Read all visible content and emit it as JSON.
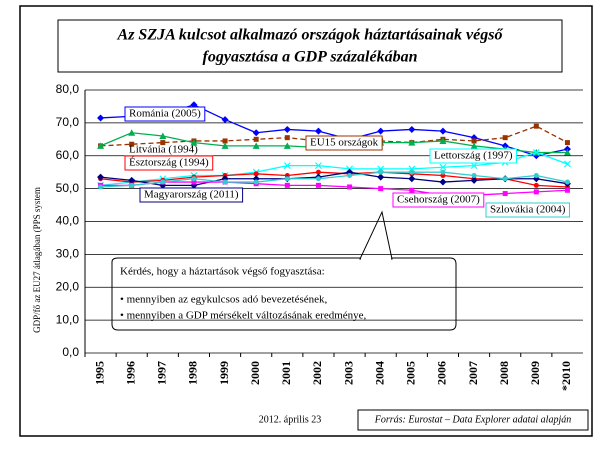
{
  "chart_data": {
    "type": "line",
    "title_lines": [
      "Az SZJA kulcsot alkalmazó országok háztartásainak végső",
      "fogyasztása a GDP százalékában"
    ],
    "ylabel": "GDP/fő az EU27 átlagában (PPS system",
    "categories": [
      "1995",
      "1996",
      "1997",
      "1998",
      "1999",
      "2000",
      "2001",
      "2002",
      "2003",
      "2004",
      "2005",
      "2006",
      "2007",
      "2008",
      "2009",
      "*2010"
    ],
    "ylim": [
      0,
      80
    ],
    "yticks": [
      {
        "value": 0,
        "label": "0,0"
      },
      {
        "value": 10,
        "label": "10,0"
      },
      {
        "value": 20,
        "label": "20,0"
      },
      {
        "value": 30,
        "label": "30,0"
      },
      {
        "value": 40,
        "label": "40,0"
      },
      {
        "value": 50,
        "label": "50,0"
      },
      {
        "value": 60,
        "label": "60,0"
      },
      {
        "value": 70,
        "label": "70,0"
      },
      {
        "value": 80,
        "label": "80,0"
      }
    ],
    "grid": true,
    "series": [
      {
        "name": "Románia (2005)",
        "color": "#0000ff",
        "marker": "diamond",
        "values": [
          71.5,
          72,
          72.5,
          75.5,
          71,
          67,
          68,
          67.5,
          65,
          67.5,
          68,
          67.5,
          65.5,
          63,
          60,
          62
        ]
      },
      {
        "name": "EU15 országok",
        "color": "#993300",
        "marker": "square",
        "dash": true,
        "values": [
          63,
          63.5,
          64,
          64.5,
          64.5,
          65,
          65.5,
          64.5,
          64.5,
          64.5,
          64,
          65,
          64.5,
          65.5,
          69,
          64
        ]
      },
      {
        "name": "Litvánia (1994)",
        "color": "#00b050",
        "marker": "triangle",
        "values": [
          63,
          67,
          66,
          64,
          63,
          63,
          63,
          62.5,
          63.5,
          64,
          64,
          64.5,
          63,
          62,
          61,
          61
        ]
      },
      {
        "name": "Lettország (1997)",
        "color": "#00ffff",
        "marker": "x",
        "values": [
          51,
          52,
          53,
          54,
          54,
          55,
          57,
          57,
          56,
          56,
          56,
          56.5,
          57,
          58,
          61,
          57.5
        ]
      },
      {
        "name": "Észtország (1994)",
        "color": "#ff0000",
        "marker": "circle",
        "values": [
          53,
          52,
          52.5,
          53.5,
          54,
          54.5,
          54,
          55,
          54.5,
          55,
          54.5,
          54,
          53,
          53,
          51,
          50.5
        ]
      },
      {
        "name": "Magyarország (2011)",
        "color": "#000080",
        "marker": "diamond",
        "values": [
          53.5,
          52.5,
          51,
          51,
          53,
          53,
          53,
          53.5,
          55,
          53.5,
          53,
          52,
          52.5,
          53,
          53,
          51.5
        ]
      },
      {
        "name": "Csehország (2007)",
        "color": "#ff00ff",
        "marker": "square",
        "values": [
          51,
          51,
          52,
          52,
          52,
          51.5,
          51,
          51,
          50.5,
          50,
          49.5,
          48,
          48,
          48.5,
          49,
          49.5
        ]
      },
      {
        "name": "Szlovákia (2004)",
        "color": "#33cccc",
        "marker": "circle",
        "values": [
          50.5,
          51,
          52,
          53,
          52,
          52,
          53,
          53,
          54,
          55,
          55,
          55,
          54,
          53,
          54,
          52
        ]
      }
    ],
    "callout": [
      "Kérdés, hogy a háztartások végső fogyasztása:",
      "• mennyiben az egykulcsos adó bevezetésének,",
      "• mennyiben a GDP mérsékelt változásának eredménye,"
    ],
    "date": "2012. április 23",
    "source": "Forrás: Eurostat – Data Explorer adatai alapján"
  }
}
